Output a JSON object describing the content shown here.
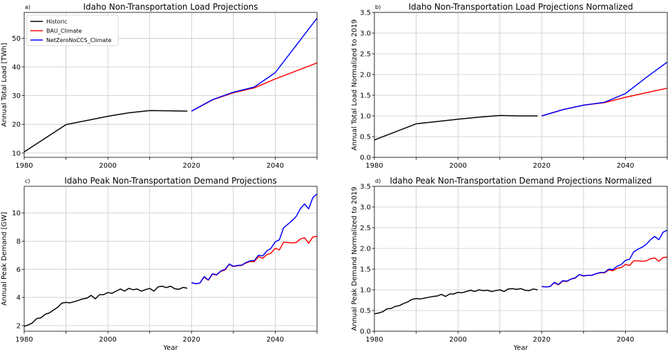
{
  "figure": {
    "colors": {
      "Historic": "#000000",
      "BAU_Climate": "#ff0000",
      "NetZeroNoCCS_Climate": "#0000ff"
    }
  },
  "chart_data": [
    {
      "type": "line",
      "letter": "a)",
      "title": "Idaho Non-Transportation Load Projections",
      "xlabel": "",
      "ylabel": "Annual Total Load [TWh]",
      "xlim": [
        1980,
        2050
      ],
      "ylim": [
        8.5,
        59
      ],
      "xticks": [
        1980,
        2000,
        2020,
        2040
      ],
      "xminor": [
        1990,
        2010,
        2030,
        2050
      ],
      "yticks": [
        10,
        20,
        30,
        40,
        50
      ],
      "grid": true,
      "legend": "top-left",
      "series": [
        {
          "name": "Historic",
          "x": [
            1980,
            1990,
            2000,
            2005,
            2010,
            2015,
            2019
          ],
          "y": [
            10.4,
            19.9,
            22.8,
            24.0,
            24.8,
            24.7,
            24.6
          ]
        },
        {
          "name": "BAU_Climate",
          "x": [
            2020,
            2025,
            2030,
            2035,
            2040,
            2045,
            2050
          ],
          "y": [
            24.6,
            28.5,
            31.0,
            32.7,
            35.8,
            38.6,
            41.4
          ]
        },
        {
          "name": "NetZeroNoCCS_Climate",
          "x": [
            2020,
            2025,
            2030,
            2035,
            2040,
            2045,
            2050
          ],
          "y": [
            24.6,
            28.6,
            31.2,
            33.0,
            38.0,
            47.5,
            57.0
          ]
        }
      ]
    },
    {
      "type": "line",
      "letter": "b)",
      "title": "Idaho Non-Transportation Load Projections Normalized",
      "xlabel": "",
      "ylabel": "Annual Total Load Normalized to 2019",
      "xlim": [
        1980,
        2050
      ],
      "ylim": [
        0,
        3.5
      ],
      "xticks": [
        1980,
        2000,
        2020,
        2040
      ],
      "xminor": [
        1990,
        2010,
        2030,
        2050
      ],
      "yticks": [
        0.0,
        0.5,
        1.0,
        1.5,
        2.0,
        2.5,
        3.0,
        3.5
      ],
      "ytick_labels": [
        "0.0",
        "0.5",
        "1.0",
        "1.5",
        "2.0",
        "2.5",
        "3.0",
        "3.5"
      ],
      "grid": true,
      "legend": "",
      "series": [
        {
          "name": "Historic",
          "x": [
            1980,
            1990,
            2000,
            2005,
            2010,
            2015,
            2019
          ],
          "y": [
            0.42,
            0.81,
            0.92,
            0.97,
            1.01,
            1.0,
            1.0
          ]
        },
        {
          "name": "BAU_Climate",
          "x": [
            2020,
            2025,
            2030,
            2035,
            2040,
            2045,
            2050
          ],
          "y": [
            1.0,
            1.15,
            1.26,
            1.32,
            1.45,
            1.56,
            1.67
          ]
        },
        {
          "name": "NetZeroNoCCS_Climate",
          "x": [
            2020,
            2025,
            2030,
            2035,
            2040,
            2045,
            2050
          ],
          "y": [
            1.0,
            1.15,
            1.26,
            1.33,
            1.54,
            1.93,
            2.3
          ]
        }
      ]
    },
    {
      "type": "line",
      "letter": "c)",
      "title": "Idaho Peak Non-Transportation Demand Projections",
      "xlabel": "Year",
      "ylabel": "Annual Peak Demand [GW]",
      "xlim": [
        1980,
        2050
      ],
      "ylim": [
        1.6,
        11.9
      ],
      "xticks": [
        1980,
        2000,
        2020,
        2040
      ],
      "xminor": [
        1990,
        2010,
        2030,
        2050
      ],
      "yticks": [
        2,
        4,
        6,
        8,
        10
      ],
      "grid": true,
      "legend": "",
      "series": [
        {
          "name": "Historic",
          "x": [
            1980,
            1981,
            1982,
            1983,
            1984,
            1985,
            1986,
            1987,
            1988,
            1989,
            1990,
            1991,
            1992,
            1993,
            1994,
            1995,
            1996,
            1997,
            1998,
            1999,
            2000,
            2001,
            2002,
            2003,
            2004,
            2005,
            2006,
            2007,
            2008,
            2009,
            2010,
            2011,
            2012,
            2013,
            2014,
            2015,
            2016,
            2017,
            2018,
            2019
          ],
          "y": [
            1.95,
            2.05,
            2.2,
            2.5,
            2.55,
            2.8,
            2.9,
            3.1,
            3.3,
            3.6,
            3.65,
            3.62,
            3.7,
            3.8,
            3.9,
            3.95,
            4.15,
            3.9,
            4.2,
            4.2,
            4.35,
            4.3,
            4.45,
            4.6,
            4.45,
            4.65,
            4.55,
            4.6,
            4.45,
            4.55,
            4.65,
            4.45,
            4.75,
            4.8,
            4.7,
            4.8,
            4.62,
            4.58,
            4.72,
            4.65
          ]
        },
        {
          "name": "BAU_Climate",
          "x": [
            2020,
            2021,
            2022,
            2023,
            2024,
            2025,
            2026,
            2027,
            2028,
            2029,
            2030,
            2031,
            2032,
            2033,
            2034,
            2035,
            2036,
            2037,
            2038,
            2039,
            2040,
            2041,
            2042,
            2043,
            2044,
            2045,
            2046,
            2047,
            2048,
            2049,
            2050
          ],
          "y": [
            5.05,
            4.98,
            5.02,
            5.45,
            5.22,
            5.65,
            5.6,
            5.85,
            5.95,
            6.35,
            6.2,
            6.25,
            6.28,
            6.45,
            6.55,
            6.55,
            6.9,
            6.78,
            7.05,
            7.15,
            7.5,
            7.38,
            7.92,
            7.9,
            7.88,
            7.9,
            8.15,
            8.25,
            7.85,
            8.3,
            8.35
          ]
        },
        {
          "name": "NetZeroNoCCS_Climate",
          "x": [
            2020,
            2021,
            2022,
            2023,
            2024,
            2025,
            2026,
            2027,
            2028,
            2029,
            2030,
            2031,
            2032,
            2033,
            2034,
            2035,
            2036,
            2037,
            2038,
            2039,
            2040,
            2041,
            2042,
            2043,
            2044,
            2045,
            2046,
            2047,
            2048,
            2049,
            2050
          ],
          "y": [
            5.05,
            4.98,
            5.02,
            5.48,
            5.25,
            5.68,
            5.62,
            5.88,
            6.0,
            6.38,
            6.22,
            6.28,
            6.3,
            6.48,
            6.6,
            6.62,
            7.0,
            6.95,
            7.3,
            7.5,
            7.95,
            8.1,
            8.95,
            9.2,
            9.45,
            9.75,
            10.3,
            10.65,
            10.3,
            11.1,
            11.35
          ]
        }
      ]
    },
    {
      "type": "line",
      "letter": "d)",
      "title": "Idaho Peak Non-Transportation Demand Projections Normalized",
      "xlabel": "Year",
      "ylabel": "Annual Peak Demand Normalized to 2019",
      "xlim": [
        1980,
        2050
      ],
      "ylim": [
        0,
        3.5
      ],
      "xticks": [
        1980,
        2000,
        2020,
        2040
      ],
      "xminor": [
        1990,
        2010,
        2030,
        2050
      ],
      "yticks": [
        0.0,
        0.5,
        1.0,
        1.5,
        2.0,
        2.5,
        3.0,
        3.5
      ],
      "ytick_labels": [
        "0.0",
        "0.5",
        "1.0",
        "1.5",
        "2.0",
        "2.5",
        "3.0",
        "3.5"
      ],
      "grid": true,
      "legend": "",
      "series": [
        {
          "name": "Historic",
          "x": [
            1980,
            1981,
            1982,
            1983,
            1984,
            1985,
            1986,
            1987,
            1988,
            1989,
            1990,
            1991,
            1992,
            1993,
            1994,
            1995,
            1996,
            1997,
            1998,
            1999,
            2000,
            2001,
            2002,
            2003,
            2004,
            2005,
            2006,
            2007,
            2008,
            2009,
            2010,
            2011,
            2012,
            2013,
            2014,
            2015,
            2016,
            2017,
            2018,
            2019
          ],
          "y": [
            0.42,
            0.44,
            0.47,
            0.54,
            0.55,
            0.6,
            0.62,
            0.67,
            0.71,
            0.77,
            0.79,
            0.78,
            0.8,
            0.82,
            0.84,
            0.85,
            0.89,
            0.84,
            0.9,
            0.9,
            0.94,
            0.93,
            0.96,
            0.99,
            0.96,
            1.0,
            0.98,
            0.99,
            0.96,
            0.98,
            1.0,
            0.96,
            1.02,
            1.03,
            1.01,
            1.03,
            0.99,
            0.98,
            1.02,
            1.0
          ]
        },
        {
          "name": "BAU_Climate",
          "x": [
            2020,
            2021,
            2022,
            2023,
            2024,
            2025,
            2026,
            2027,
            2028,
            2029,
            2030,
            2031,
            2032,
            2033,
            2034,
            2035,
            2036,
            2037,
            2038,
            2039,
            2040,
            2041,
            2042,
            2043,
            2044,
            2045,
            2046,
            2047,
            2048,
            2049,
            2050
          ],
          "y": [
            1.08,
            1.07,
            1.08,
            1.17,
            1.12,
            1.21,
            1.2,
            1.26,
            1.28,
            1.37,
            1.33,
            1.35,
            1.35,
            1.39,
            1.41,
            1.41,
            1.48,
            1.46,
            1.52,
            1.54,
            1.61,
            1.59,
            1.7,
            1.7,
            1.69,
            1.7,
            1.75,
            1.77,
            1.69,
            1.78,
            1.79
          ]
        },
        {
          "name": "NetZeroNoCCS_Climate",
          "x": [
            2020,
            2021,
            2022,
            2023,
            2024,
            2025,
            2026,
            2027,
            2028,
            2029,
            2030,
            2031,
            2032,
            2033,
            2034,
            2035,
            2036,
            2037,
            2038,
            2039,
            2040,
            2041,
            2042,
            2043,
            2044,
            2045,
            2046,
            2047,
            2048,
            2049,
            2050
          ],
          "y": [
            1.08,
            1.07,
            1.08,
            1.18,
            1.13,
            1.22,
            1.21,
            1.26,
            1.29,
            1.37,
            1.34,
            1.35,
            1.35,
            1.39,
            1.42,
            1.42,
            1.5,
            1.49,
            1.57,
            1.61,
            1.71,
            1.74,
            1.92,
            1.98,
            2.03,
            2.1,
            2.21,
            2.29,
            2.21,
            2.39,
            2.44
          ]
        }
      ]
    }
  ]
}
